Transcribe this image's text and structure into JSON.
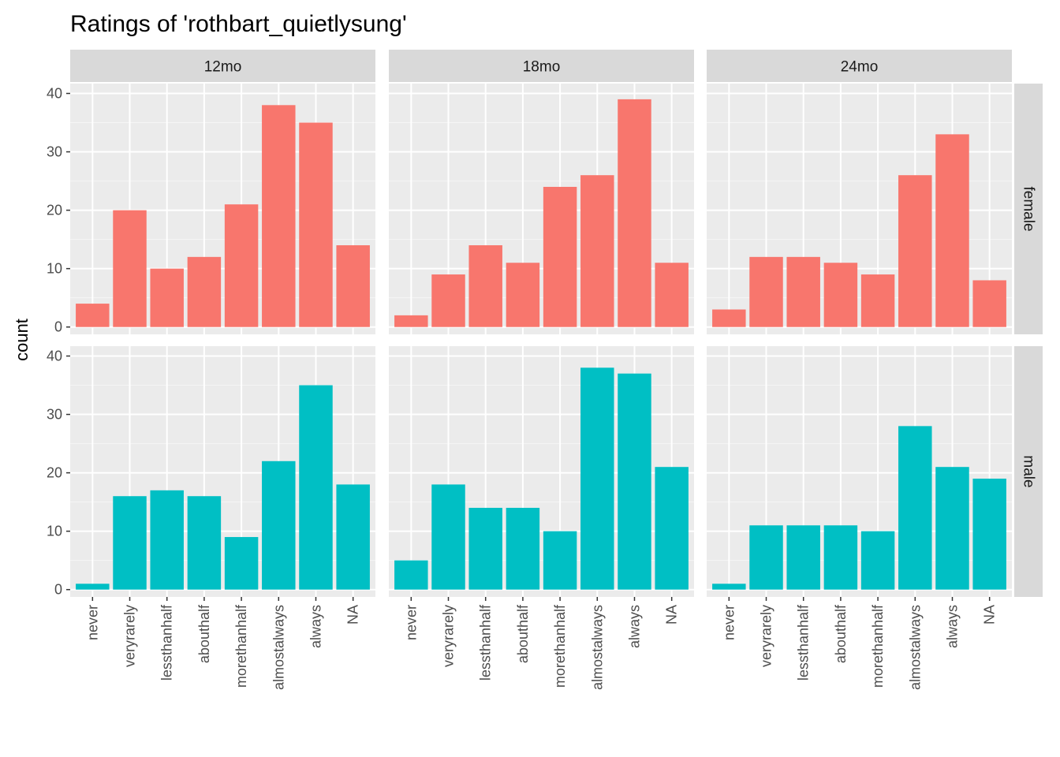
{
  "chart_data": {
    "type": "bar",
    "title": "Ratings of 'rothbart_quietlysung'",
    "ylabel": "count",
    "xlabel": "",
    "categories": [
      "never",
      "veryrarely",
      "lessthanhalf",
      "abouthalf",
      "morethanhalf",
      "almostalways",
      "always",
      "NA"
    ],
    "facet_columns": [
      "12mo",
      "18mo",
      "24mo"
    ],
    "facet_rows": [
      "female",
      "male"
    ],
    "ylim": [
      0,
      40
    ],
    "yticks": [
      0,
      10,
      20,
      30,
      40
    ],
    "grid": true,
    "legend": "none",
    "colors": {
      "female": "#F8766D",
      "male": "#00BFC4"
    },
    "series": [
      {
        "name": "female",
        "panels": [
          {
            "facet": "12mo",
            "values": [
              4,
              20,
              10,
              12,
              21,
              38,
              35,
              14
            ]
          },
          {
            "facet": "18mo",
            "values": [
              2,
              9,
              14,
              11,
              24,
              26,
              39,
              11
            ]
          },
          {
            "facet": "24mo",
            "values": [
              3,
              12,
              12,
              11,
              9,
              26,
              33,
              8
            ]
          }
        ]
      },
      {
        "name": "male",
        "panels": [
          {
            "facet": "12mo",
            "values": [
              1,
              16,
              17,
              16,
              9,
              22,
              35,
              18
            ]
          },
          {
            "facet": "18mo",
            "values": [
              5,
              18,
              14,
              14,
              10,
              38,
              37,
              21
            ]
          },
          {
            "facet": "24mo",
            "values": [
              1,
              11,
              11,
              11,
              10,
              28,
              21,
              19
            ]
          }
        ]
      }
    ]
  }
}
